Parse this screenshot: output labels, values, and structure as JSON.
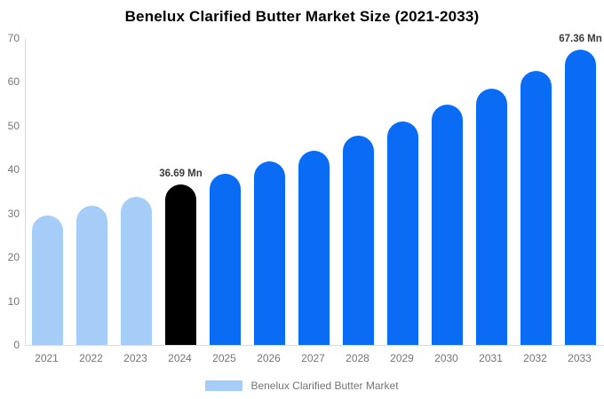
{
  "chart_data": {
    "type": "bar",
    "title": "Benelux Clarified Butter Market Size (2021-2033)",
    "xlabel": "",
    "ylabel": "",
    "ylim": [
      0,
      70
    ],
    "yticks": [
      0,
      10,
      20,
      30,
      40,
      50,
      60,
      70
    ],
    "grid": false,
    "categories": [
      "2021",
      "2022",
      "2023",
      "2024",
      "2025",
      "2026",
      "2027",
      "2028",
      "2029",
      "2030",
      "2031",
      "2032",
      "2033"
    ],
    "values": [
      29.5,
      31.8,
      33.8,
      36.69,
      39.0,
      41.9,
      44.3,
      47.7,
      51.0,
      54.8,
      58.5,
      62.5,
      67.36
    ],
    "bar_colors": [
      "#a6cdf8",
      "#a6cdf8",
      "#a6cdf8",
      "#000000",
      "#0a6cf5",
      "#0a6cf5",
      "#0a6cf5",
      "#0a6cf5",
      "#0a6cf5",
      "#0a6cf5",
      "#0a6cf5",
      "#0a6cf5",
      "#0a6cf5"
    ],
    "annotations": [
      {
        "category": "2024",
        "text": "36.69 Mn"
      },
      {
        "category": "2033",
        "text": "67.36 Mn"
      }
    ],
    "legend": {
      "position": "bottom",
      "items": [
        {
          "label": "Benelux Clarified Butter Market",
          "color": "#a6cdf8"
        }
      ]
    },
    "colors": {
      "historical_bar": "#a6cdf8",
      "highlight_bar": "#000000",
      "forecast_bar": "#0a6cf5",
      "axis_line": "#dcdcdc",
      "tick_label": "#757575",
      "annotation_text": "#3c3c3c",
      "title_text": "#000000"
    }
  }
}
